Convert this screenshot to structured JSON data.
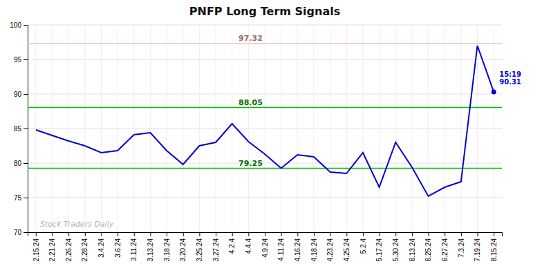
{
  "chart_data": {
    "type": "line",
    "title": "PNFP Long Term Signals",
    "categories": [
      "2.15.24",
      "2.21.24",
      "2.26.24",
      "2.28.24",
      "3.4.24",
      "3.6.24",
      "3.11.24",
      "3.13.24",
      "3.18.24",
      "3.20.24",
      "3.25.24",
      "3.27.24",
      "4.2.4",
      "4.4.4",
      "4.9.24",
      "4.11.24",
      "4.16.24",
      "4.18.24",
      "4.23.24",
      "4.25.24",
      "5.2.4",
      "5.17.24",
      "5.30.24",
      "6.13.24",
      "6.25.24",
      "6.27.24",
      "7.3.24",
      "7.19.24",
      "8.15.24"
    ],
    "values": [
      84.8,
      84.0,
      83.2,
      82.5,
      81.5,
      81.8,
      84.1,
      84.4,
      81.8,
      79.8,
      82.5,
      83.0,
      85.7,
      83.1,
      81.3,
      79.25,
      81.2,
      80.9,
      78.7,
      78.5,
      81.5,
      76.5,
      83.0,
      79.4,
      75.2,
      76.5,
      77.3,
      97.0,
      90.31
    ],
    "color": "#0000cc",
    "reference_lines": [
      {
        "value": 97.32,
        "color": "#ffbbbb"
      },
      {
        "value": 88.05,
        "color": "#00bb00"
      },
      {
        "value": 79.25,
        "color": "#00bb00"
      }
    ],
    "annotation": {
      "time": "15:19",
      "value": 90.31
    },
    "watermark": "Stock Traders Daily",
    "ylim": [
      70,
      100
    ],
    "yticks": [
      70,
      75,
      80,
      85,
      90,
      95,
      100
    ],
    "grid": true
  }
}
